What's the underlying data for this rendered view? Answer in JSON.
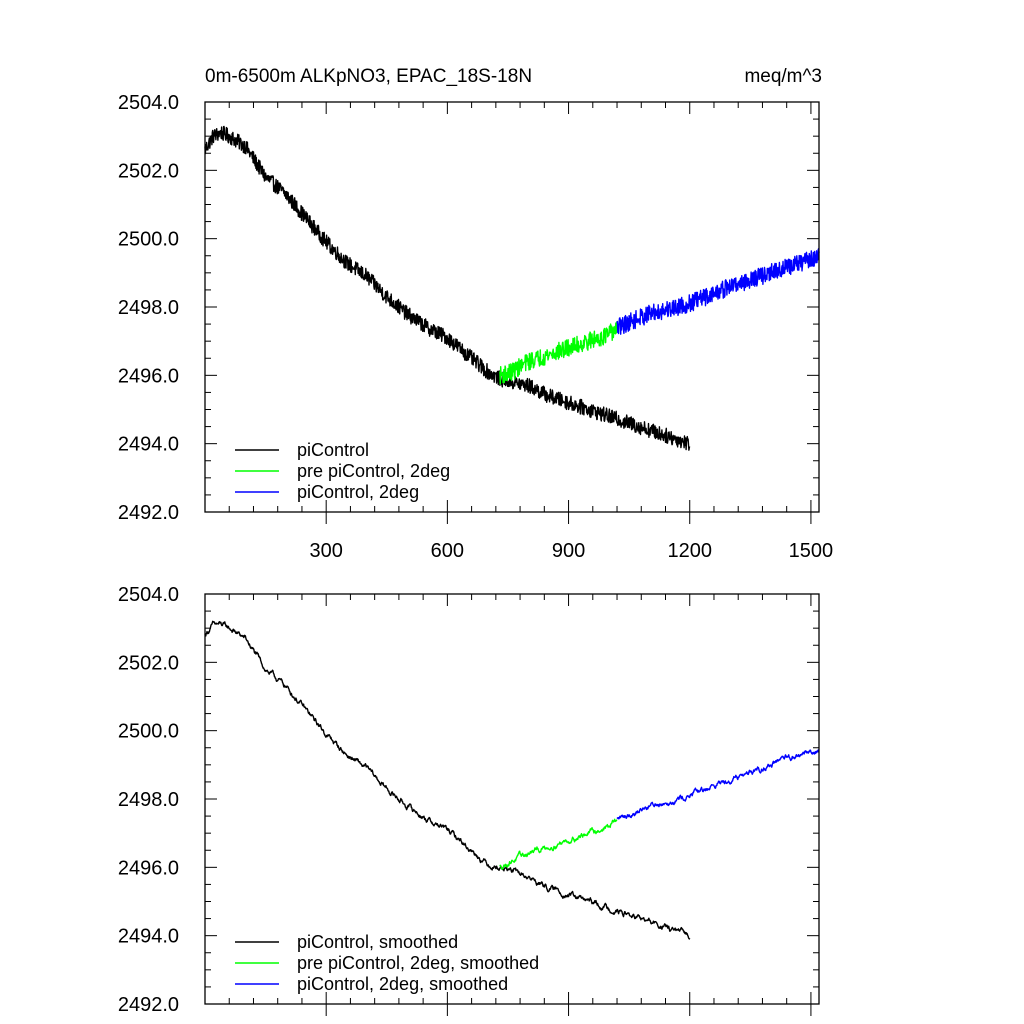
{
  "chart_data": [
    {
      "type": "line",
      "title": "0m-6500m ALKpNO3, EPAC_18S-18N",
      "units": "meq/m^3",
      "xlabel": "",
      "ylabel": "",
      "xlim": [
        0,
        1520
      ],
      "ylim": [
        2492.0,
        2504.0
      ],
      "xticks": [
        300,
        600,
        900,
        1200,
        1500
      ],
      "xtick_labels": [
        "300",
        "600",
        "900",
        "1200",
        "1500"
      ],
      "yticks": [
        2492.0,
        2494.0,
        2496.0,
        2498.0,
        2500.0,
        2502.0,
        2504.0
      ],
      "ytick_labels": [
        "2492.0",
        "2494.0",
        "2496.0",
        "2498.0",
        "2500.0",
        "2502.0",
        "2504.0"
      ],
      "legend_position": "bottom-left",
      "series": [
        {
          "name": "piControl",
          "color": "#000000",
          "noise": 0.22,
          "x": [
            0,
            20,
            40,
            60,
            100,
            150,
            200,
            250,
            300,
            350,
            400,
            450,
            500,
            550,
            600,
            650,
            700,
            730,
            760,
            800,
            850,
            900,
            950,
            1000,
            1050,
            1100,
            1150,
            1200
          ],
          "y": [
            2502.6,
            2503.0,
            2503.1,
            2503.0,
            2502.7,
            2501.8,
            2501.3,
            2500.6,
            2499.9,
            2499.3,
            2498.9,
            2498.3,
            2497.8,
            2497.4,
            2497.1,
            2496.6,
            2496.1,
            2495.9,
            2495.8,
            2495.7,
            2495.4,
            2495.2,
            2495.0,
            2494.8,
            2494.6,
            2494.4,
            2494.2,
            2494.0
          ]
        },
        {
          "name": "pre piControl, 2deg",
          "color": "#00ff00",
          "noise": 0.26,
          "x": [
            730,
            760,
            800,
            850,
            900,
            950,
            1000,
            1020
          ],
          "y": [
            2496.0,
            2496.1,
            2496.4,
            2496.6,
            2496.8,
            2497.0,
            2497.2,
            2497.4
          ]
        },
        {
          "name": "piControl, 2deg",
          "color": "#0000ff",
          "noise": 0.26,
          "x": [
            1020,
            1100,
            1200,
            1300,
            1400,
            1500,
            1520
          ],
          "y": [
            2497.4,
            2497.8,
            2498.1,
            2498.6,
            2499.0,
            2499.4,
            2499.5
          ]
        }
      ]
    },
    {
      "type": "line",
      "title": "",
      "xlabel": "",
      "ylabel": "",
      "xlim": [
        0,
        1520
      ],
      "ylim": [
        2492.0,
        2504.0
      ],
      "xticks": [
        300,
        600,
        900,
        1200,
        1500
      ],
      "yticks": [
        2492.0,
        2494.0,
        2496.0,
        2498.0,
        2500.0,
        2502.0,
        2504.0
      ],
      "ytick_labels": [
        "2492.0",
        "2494.0",
        "2496.0",
        "2498.0",
        "2500.0",
        "2502.0",
        "2504.0"
      ],
      "legend_position": "bottom-left",
      "series": [
        {
          "name": "piControl, smoothed",
          "color": "#000000",
          "noise": 0.05,
          "x": [
            0,
            20,
            40,
            60,
            100,
            150,
            200,
            250,
            300,
            350,
            400,
            450,
            500,
            550,
            600,
            650,
            700,
            730,
            760,
            800,
            850,
            900,
            950,
            1000,
            1050,
            1100,
            1150,
            1200
          ],
          "y": [
            2502.8,
            2503.1,
            2503.1,
            2503.0,
            2502.7,
            2501.8,
            2501.3,
            2500.6,
            2499.9,
            2499.3,
            2498.9,
            2498.3,
            2497.8,
            2497.4,
            2497.1,
            2496.6,
            2496.1,
            2496.0,
            2495.9,
            2495.7,
            2495.4,
            2495.2,
            2495.0,
            2494.8,
            2494.6,
            2494.4,
            2494.2,
            2494.0
          ]
        },
        {
          "name": "pre piControl, 2deg, smoothed",
          "color": "#00ff00",
          "noise": 0.05,
          "x": [
            730,
            760,
            800,
            850,
            900,
            950,
            1000,
            1020
          ],
          "y": [
            2496.0,
            2496.2,
            2496.4,
            2496.6,
            2496.8,
            2497.0,
            2497.2,
            2497.4
          ]
        },
        {
          "name": "piControl, 2deg, smoothed",
          "color": "#0000ff",
          "noise": 0.05,
          "x": [
            1020,
            1100,
            1200,
            1300,
            1400,
            1500,
            1520
          ],
          "y": [
            2497.4,
            2497.8,
            2498.1,
            2498.6,
            2499.0,
            2499.4,
            2499.4
          ]
        }
      ]
    }
  ]
}
